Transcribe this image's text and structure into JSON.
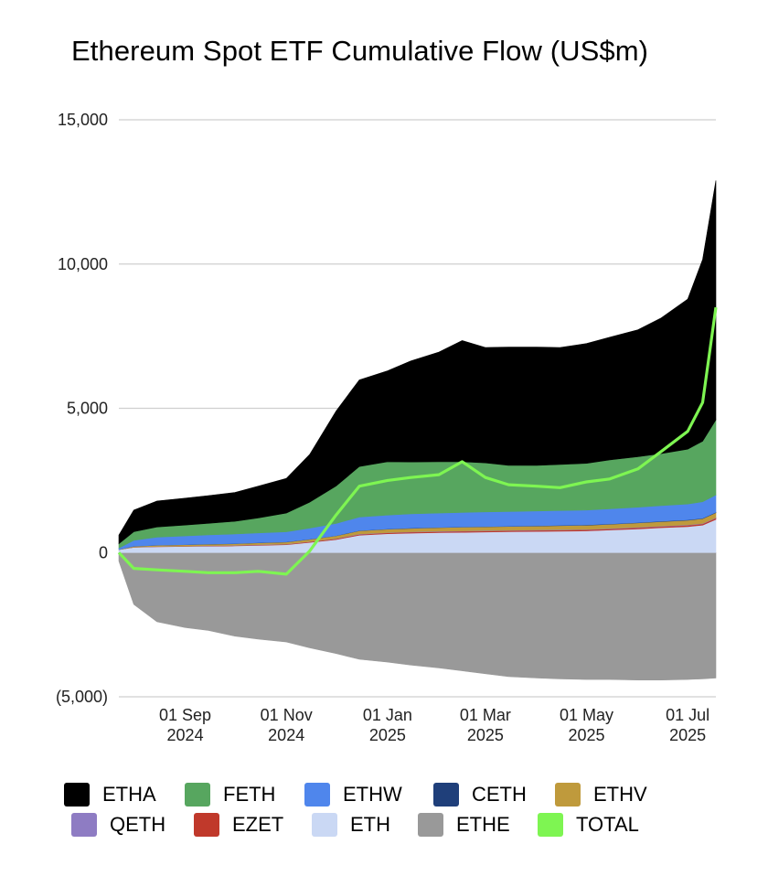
{
  "chart_data": {
    "type": "area",
    "title": "Ethereum Spot ETF Cumulative Flow (US$m)",
    "stacked": true,
    "y_ticks": [
      "15,000",
      "10,000",
      "5,000",
      "0",
      "(5,000)"
    ],
    "ylim": [
      -5000,
      15000
    ],
    "grid": true,
    "x_ticks": [
      {
        "date": "2024-09-01",
        "line1": "01 Sep",
        "line2": "2024"
      },
      {
        "date": "2024-11-01",
        "line1": "01 Nov",
        "line2": "2024"
      },
      {
        "date": "2025-01-01",
        "line1": "01 Jan",
        "line2": "2025"
      },
      {
        "date": "2025-03-01",
        "line1": "01 Mar",
        "line2": "2025"
      },
      {
        "date": "2025-05-01",
        "line1": "01 May",
        "line2": "2025"
      },
      {
        "date": "2025-07-01",
        "line1": "01 Jul",
        "line2": "2025"
      }
    ],
    "x": [
      "2024-07-23",
      "2024-08-01",
      "2024-08-15",
      "2024-09-01",
      "2024-09-15",
      "2024-10-01",
      "2024-10-15",
      "2024-11-01",
      "2024-11-15",
      "2024-12-01",
      "2024-12-15",
      "2025-01-01",
      "2025-01-15",
      "2025-02-01",
      "2025-02-15",
      "2025-03-01",
      "2025-03-15",
      "2025-04-01",
      "2025-04-15",
      "2025-05-01",
      "2025-05-15",
      "2025-06-01",
      "2025-06-15",
      "2025-07-01",
      "2025-07-10",
      "2025-07-18"
    ],
    "legend_position": "bottom",
    "series": [
      {
        "name": "ETHE",
        "color": "#999999",
        "values": [
          -300,
          -1800,
          -2400,
          -2600,
          -2700,
          -2900,
          -3000,
          -3100,
          -3300,
          -3500,
          -3700,
          -3800,
          -3900,
          -4000,
          -4100,
          -4200,
          -4300,
          -4350,
          -4380,
          -4400,
          -4400,
          -4420,
          -4420,
          -4400,
          -4380,
          -4350
        ]
      },
      {
        "name": "ETH",
        "color": "#cad8f4",
        "values": [
          100,
          180,
          200,
          210,
          220,
          230,
          250,
          270,
          350,
          450,
          600,
          650,
          670,
          690,
          700,
          710,
          720,
          730,
          740,
          750,
          780,
          820,
          860,
          900,
          950,
          1150
        ]
      },
      {
        "name": "EZET",
        "color": "#c0392b",
        "values": [
          0,
          5,
          8,
          10,
          12,
          14,
          16,
          18,
          22,
          26,
          30,
          32,
          34,
          35,
          36,
          37,
          38,
          38,
          39,
          40,
          40,
          41,
          42,
          43,
          44,
          45
        ]
      },
      {
        "name": "QETH",
        "color": "#8e7cc3",
        "values": [
          0,
          3,
          4,
          5,
          6,
          7,
          8,
          9,
          10,
          11,
          12,
          12,
          13,
          13,
          14,
          14,
          14,
          15,
          15,
          15,
          15,
          16,
          16,
          16,
          16,
          16
        ]
      },
      {
        "name": "ETHV",
        "color": "#bf9a3c",
        "values": [
          5,
          30,
          40,
          45,
          50,
          55,
          60,
          65,
          75,
          90,
          110,
          115,
          120,
          125,
          128,
          130,
          132,
          135,
          138,
          140,
          145,
          150,
          155,
          160,
          165,
          170
        ]
      },
      {
        "name": "CETH",
        "color": "#1f3f7a",
        "values": [
          0,
          2,
          3,
          4,
          5,
          6,
          6,
          7,
          8,
          9,
          10,
          10,
          11,
          11,
          12,
          12,
          12,
          12,
          13,
          13,
          13,
          14,
          14,
          14,
          15,
          15
        ]
      },
      {
        "name": "ETHW",
        "color": "#4f86ec",
        "values": [
          50,
          200,
          280,
          300,
          320,
          330,
          340,
          350,
          380,
          420,
          470,
          480,
          490,
          495,
          500,
          505,
          505,
          510,
          510,
          515,
          520,
          530,
          540,
          550,
          570,
          600
        ]
      },
      {
        "name": "FETH",
        "color": "#57a65f",
        "values": [
          150,
          300,
          350,
          380,
          400,
          440,
          520,
          650,
          900,
          1300,
          1750,
          1850,
          1800,
          1780,
          1760,
          1700,
          1600,
          1580,
          1600,
          1620,
          1700,
          1750,
          1800,
          1900,
          2100,
          2600
        ]
      },
      {
        "name": "ETHA",
        "color": "#000000",
        "values": [
          300,
          750,
          900,
          930,
          960,
          1000,
          1100,
          1200,
          1650,
          2600,
          3000,
          3150,
          3500,
          3800,
          4200,
          4000,
          4100,
          4100,
          4050,
          4150,
          4250,
          4400,
          4700,
          5200,
          6300,
          8300
        ]
      }
    ],
    "total": {
      "name": "TOTAL",
      "color": "#7ef552",
      "values": [
        0,
        -550,
        -600,
        -650,
        -700,
        -700,
        -650,
        -750,
        50,
        1300,
        2300,
        2500,
        2600,
        2700,
        3150,
        2600,
        2350,
        2300,
        2250,
        2450,
        2550,
        2900,
        3500,
        4200,
        5200,
        8500
      ]
    },
    "legend": [
      [
        "ETHA",
        "FETH",
        "ETHW",
        "CETH",
        "ETHV"
      ],
      [
        "QETH",
        "EZET",
        "ETH",
        "ETHE",
        "TOTAL"
      ]
    ]
  }
}
